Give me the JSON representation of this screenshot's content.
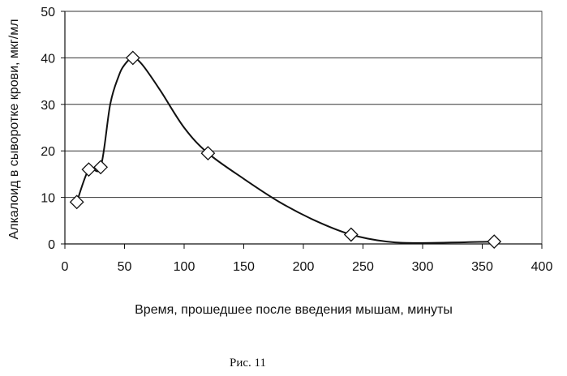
{
  "chart_data": {
    "type": "line",
    "title": "",
    "xlabel": "Время, прошедшее после введения мышам, минуты",
    "ylabel": "Алкалоид в сыворотке крови, мкг/мл",
    "xlim": [
      0,
      400
    ],
    "ylim": [
      0,
      50
    ],
    "x_ticks": [
      0,
      50,
      100,
      150,
      200,
      250,
      300,
      350,
      400
    ],
    "y_ticks": [
      0,
      10,
      20,
      30,
      40,
      50
    ],
    "grid": "horizontal",
    "legend": "none",
    "series": [
      {
        "marker": "diamond",
        "points": [
          [
            10,
            9
          ],
          [
            20,
            16
          ],
          [
            30,
            16.5
          ],
          [
            57,
            40
          ],
          [
            120,
            19.5
          ],
          [
            240,
            2
          ],
          [
            360,
            0.5
          ]
        ]
      }
    ],
    "smooth_curve": [
      [
        10,
        9
      ],
      [
        20,
        16
      ],
      [
        30,
        16.5
      ],
      [
        38,
        30
      ],
      [
        45,
        36
      ],
      [
        50,
        38.5
      ],
      [
        57,
        40
      ],
      [
        65,
        38.5
      ],
      [
        80,
        33
      ],
      [
        100,
        25
      ],
      [
        120,
        19.5
      ],
      [
        150,
        14
      ],
      [
        180,
        9
      ],
      [
        210,
        5
      ],
      [
        240,
        2
      ],
      [
        270,
        0.5
      ],
      [
        300,
        0.2
      ],
      [
        360,
        0.5
      ]
    ],
    "line_color": "#111111"
  },
  "caption": "Рис. 11"
}
